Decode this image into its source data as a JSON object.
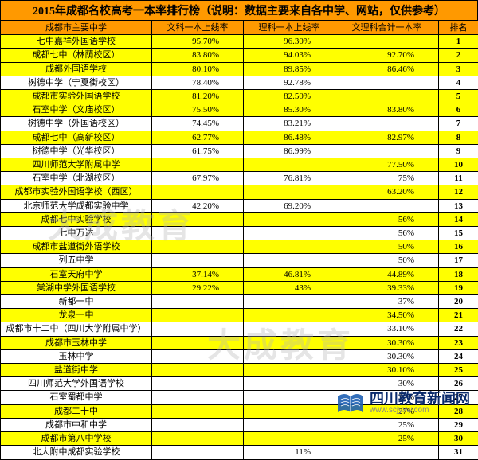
{
  "title": "2015年成都名校高考一本率排行榜（说明：数据主要来自各中学、网站，仅供参考）",
  "columns": [
    "成都市主要中学",
    "文科一本上线率",
    "理科一本上线率",
    "文理科合计一本率",
    "排名"
  ],
  "colors": {
    "header_bg": "#ff9900",
    "highlight_bg": "#ffff00",
    "normal_bg": "#ffffff",
    "border": "#000000"
  },
  "watermark_text": "大成教育",
  "brand": {
    "cn": "四川教育新闻网",
    "url": "www.scjyxw.com"
  },
  "rows": [
    {
      "school": "七中嘉祥外国语学校",
      "p1": "95.70%",
      "p2": "96.30%",
      "p3": "",
      "rank": 1,
      "hl": true
    },
    {
      "school": "成都七中（林荫校区）",
      "p1": "83.80%",
      "p2": "94.03%",
      "p3": "92.70%",
      "rank": 2,
      "hl": true
    },
    {
      "school": "成都外国语学校",
      "p1": "80.10%",
      "p2": "89.85%",
      "p3": "86.46%",
      "rank": 3,
      "hl": true
    },
    {
      "school": "树德中学（宁夏街校区）",
      "p1": "78.40%",
      "p2": "92.78%",
      "p3": "",
      "rank": 4,
      "hl": false
    },
    {
      "school": "成都市实验外国语学校",
      "p1": "81.20%",
      "p2": "82.50%",
      "p3": "",
      "rank": 5,
      "hl": true
    },
    {
      "school": "石室中学（文庙校区）",
      "p1": "75.50%",
      "p2": "85.30%",
      "p3": "83.80%",
      "rank": 6,
      "hl": true
    },
    {
      "school": "树德中学（外国语校区）",
      "p1": "74.45%",
      "p2": "83.21%",
      "p3": "",
      "rank": 7,
      "hl": false
    },
    {
      "school": "成都七中（高新校区）",
      "p1": "62.77%",
      "p2": "86.48%",
      "p3": "82.97%",
      "rank": 8,
      "hl": true
    },
    {
      "school": "树德中学（光华校区）",
      "p1": "61.75%",
      "p2": "86.99%",
      "p3": "",
      "rank": 9,
      "hl": false
    },
    {
      "school": "四川师范大学附属中学",
      "p1": "",
      "p2": "",
      "p3": "77.50%",
      "rank": 10,
      "hl": true
    },
    {
      "school": "石室中学（北湖校区）",
      "p1": "67.97%",
      "p2": "76.81%",
      "p3": "75%",
      "rank": 11,
      "hl": false
    },
    {
      "school": "成都市实验外国语学校（西区）",
      "p1": "",
      "p2": "",
      "p3": "63.20%",
      "rank": 12,
      "hl": true
    },
    {
      "school": "北京师范大学成都实验中学",
      "p1": "42.20%",
      "p2": "69.20%",
      "p3": "",
      "rank": 13,
      "hl": false
    },
    {
      "school": "成都七中实验学校",
      "p1": "",
      "p2": "",
      "p3": "56%",
      "rank": 14,
      "hl": true
    },
    {
      "school": "七中万达",
      "p1": "",
      "p2": "",
      "p3": "56%",
      "rank": 15,
      "hl": false
    },
    {
      "school": "成都市盐道街外语学校",
      "p1": "",
      "p2": "",
      "p3": "50%",
      "rank": 16,
      "hl": true
    },
    {
      "school": "列五中学",
      "p1": "",
      "p2": "",
      "p3": "50%",
      "rank": 17,
      "hl": false
    },
    {
      "school": "石室天府中学",
      "p1": "37.14%",
      "p2": "46.81%",
      "p3": "44.89%",
      "rank": 18,
      "hl": true
    },
    {
      "school": "棠湖中学外国语学校",
      "p1": "29.22%",
      "p2": "43%",
      "p3": "39.33%",
      "rank": 19,
      "hl": true
    },
    {
      "school": "新都一中",
      "p1": "",
      "p2": "",
      "p3": "37%",
      "rank": 20,
      "hl": false
    },
    {
      "school": "龙泉一中",
      "p1": "",
      "p2": "",
      "p3": "34.50%",
      "rank": 21,
      "hl": true
    },
    {
      "school": "成都市十二中（四川大学附属中学）",
      "p1": "",
      "p2": "",
      "p3": "33.10%",
      "rank": 22,
      "hl": false
    },
    {
      "school": "成都市玉林中学",
      "p1": "",
      "p2": "",
      "p3": "30.30%",
      "rank": 23,
      "hl": true
    },
    {
      "school": "玉林中学",
      "p1": "",
      "p2": "",
      "p3": "30.30%",
      "rank": 24,
      "hl": false
    },
    {
      "school": "盐道街中学",
      "p1": "",
      "p2": "",
      "p3": "30.10%",
      "rank": 25,
      "hl": true
    },
    {
      "school": "四川师范大学外国语学校",
      "p1": "",
      "p2": "",
      "p3": "30%",
      "rank": 26,
      "hl": false
    },
    {
      "school": "石室蜀都中学",
      "p1": "",
      "p2": "",
      "p3": "30%",
      "rank": 27,
      "hl": false
    },
    {
      "school": "成都二十中",
      "p1": "",
      "p2": "",
      "p3": "27%",
      "rank": 28,
      "hl": true
    },
    {
      "school": "成都市中和中学",
      "p1": "",
      "p2": "",
      "p3": "25%",
      "rank": 29,
      "hl": false
    },
    {
      "school": "成都市第八中学校",
      "p1": "",
      "p2": "",
      "p3": "25%",
      "rank": 30,
      "hl": true
    },
    {
      "school": "北大附中成都实验学校",
      "p1": "",
      "p2": "11%",
      "p3": "",
      "rank": 31,
      "hl": false
    }
  ]
}
